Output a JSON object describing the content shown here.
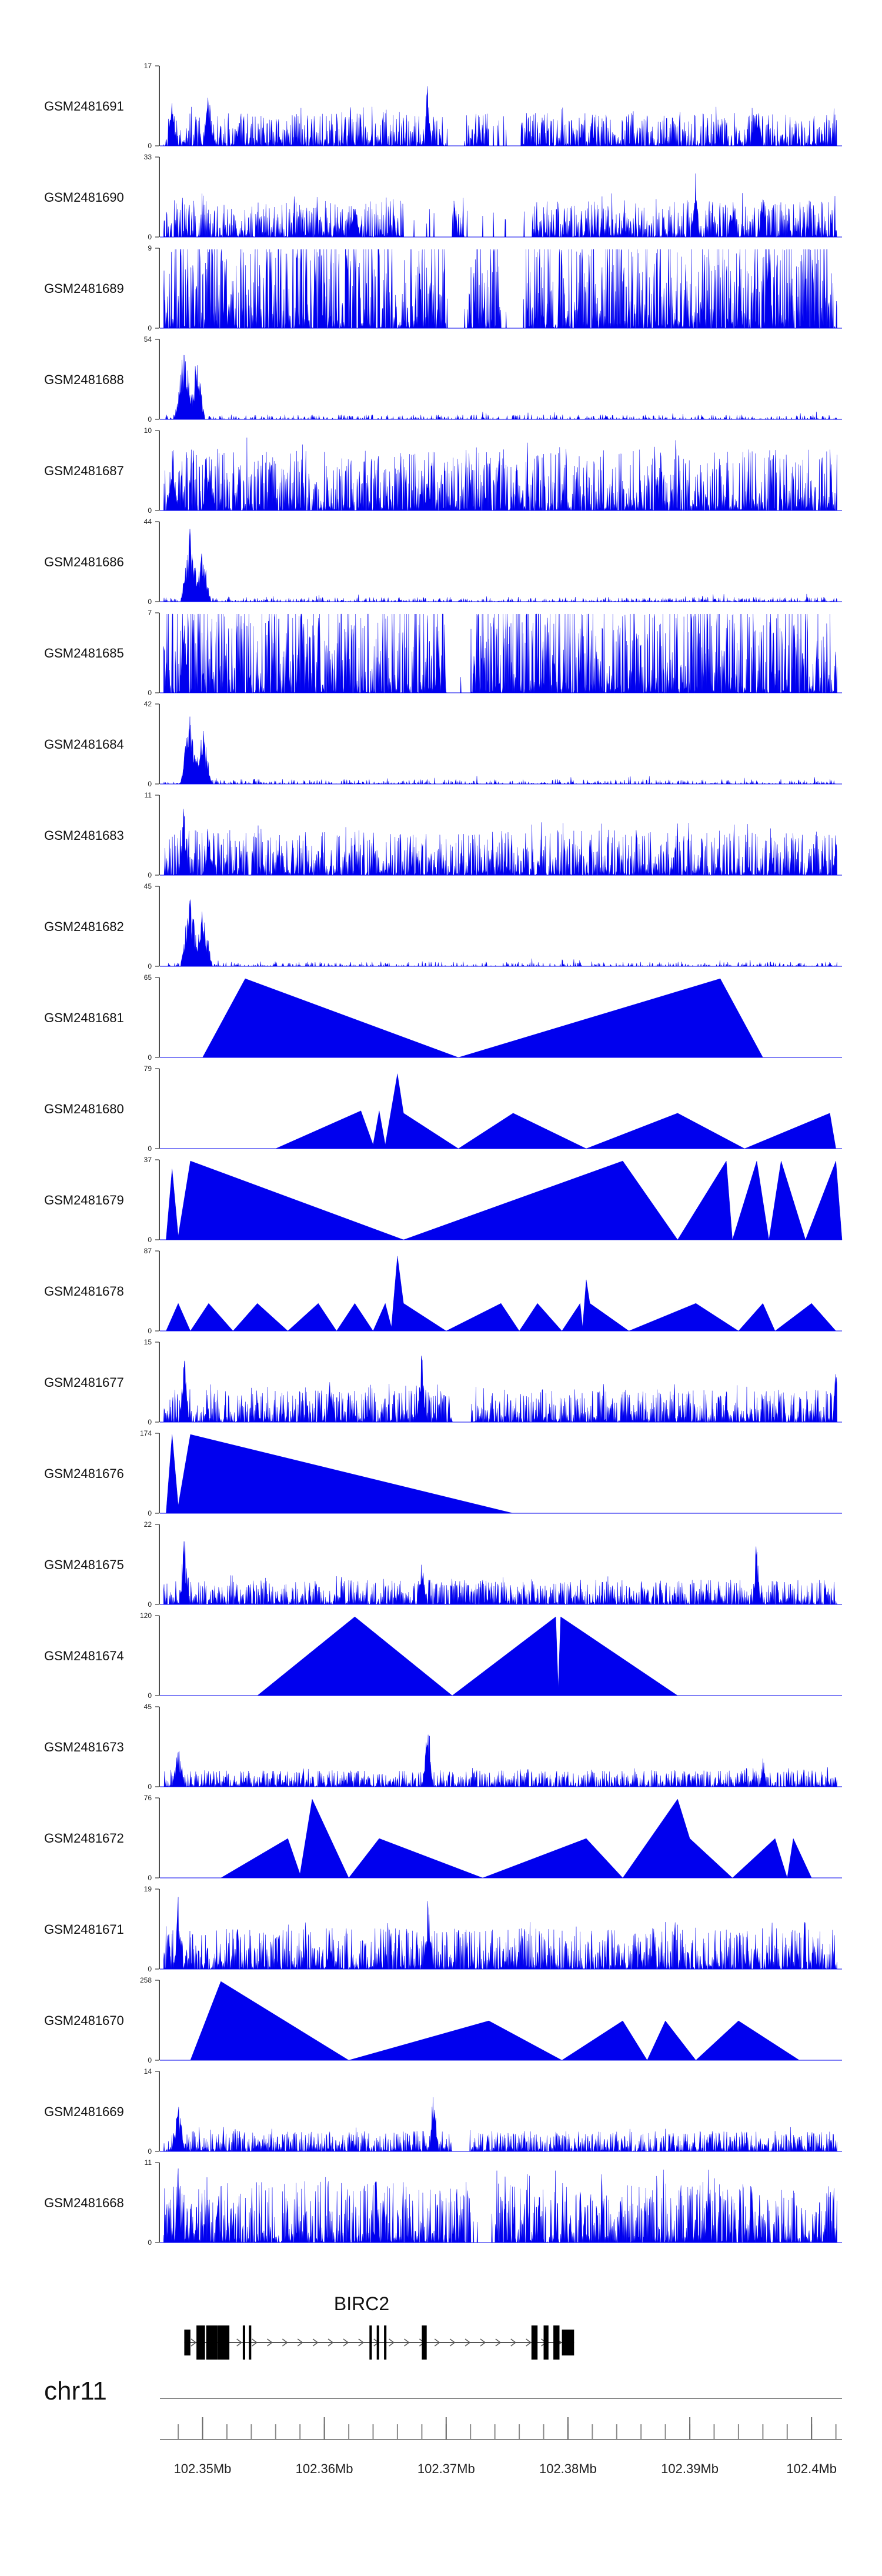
{
  "chart_data": {
    "type": "area",
    "title": "",
    "chromosome": "chr11",
    "gene": "BIRC2",
    "x_unit": "Mb",
    "xlim": [
      102.3465,
      102.4025
    ],
    "xticks": [
      102.35,
      102.36,
      102.37,
      102.38,
      102.39,
      102.4
    ],
    "xtick_labels": [
      "102.35Mb",
      "102.36Mb",
      "102.37Mb",
      "102.38Mb",
      "102.39Mb",
      "102.4Mb"
    ],
    "color": "#0000ee",
    "tracks": [
      {
        "name": "GSM2481691",
        "ymax": 17,
        "max_label": "17",
        "min_label": "0",
        "pattern": "dense",
        "seed": 11,
        "base": 0.16,
        "peaks": [
          [
            102.3475,
            0.95,
            0.0003
          ],
          [
            102.3505,
            0.7,
            0.0005
          ],
          [
            102.3685,
            1.0,
            0.0003
          ],
          [
            102.3955,
            0.55,
            0.0005
          ]
        ],
        "gaps": [
          [
            102.37,
            102.3715
          ],
          [
            102.3735,
            102.376
          ]
        ]
      },
      {
        "name": "GSM2481690",
        "ymax": 33,
        "max_label": "33",
        "min_label": "0",
        "pattern": "dense",
        "seed": 23,
        "base": 0.18,
        "peaks": [
          [
            102.3625,
            0.5,
            0.0004
          ],
          [
            102.3905,
            0.9,
            0.0003
          ],
          [
            102.3935,
            0.6,
            0.0004
          ],
          [
            102.396,
            0.85,
            0.0003
          ]
        ],
        "gaps": [
          [
            102.3665,
            102.3705
          ],
          [
            102.3715,
            102.377
          ]
        ]
      },
      {
        "name": "GSM2481689",
        "ymax": 9,
        "max_label": "9",
        "min_label": "0",
        "pattern": "dense",
        "seed": 37,
        "base": 0.5,
        "peaks": [
          [
            102.3965,
            1.0,
            0.0003
          ]
        ],
        "gaps": [
          [
            102.37,
            102.3718
          ],
          [
            102.3745,
            102.3765
          ]
        ]
      },
      {
        "name": "GSM2481688",
        "ymax": 54,
        "max_label": "54",
        "min_label": "0",
        "pattern": "sparse",
        "seed": 41,
        "base": 0.03,
        "peaks": [
          [
            102.3485,
            1.0,
            0.0008
          ],
          [
            102.3495,
            0.8,
            0.0007
          ]
        ],
        "gaps": []
      },
      {
        "name": "GSM2481687",
        "ymax": 10,
        "max_label": "10",
        "min_label": "0",
        "pattern": "dense",
        "seed": 53,
        "base": 0.3,
        "peaks": [
          [
            102.3475,
            0.9,
            0.0005
          ],
          [
            102.3505,
            0.55,
            0.0006
          ],
          [
            102.3685,
            0.45,
            0.0004
          ]
        ],
        "gaps": []
      },
      {
        "name": "GSM2481686",
        "ymax": 44,
        "max_label": "44",
        "min_label": "0",
        "pattern": "sparse",
        "seed": 61,
        "base": 0.03,
        "peaks": [
          [
            102.349,
            1.0,
            0.0008
          ],
          [
            102.35,
            0.7,
            0.0007
          ]
        ],
        "gaps": []
      },
      {
        "name": "GSM2481685",
        "ymax": 7,
        "max_label": "7",
        "min_label": "0",
        "pattern": "dense",
        "seed": 71,
        "base": 0.5,
        "peaks": [
          [
            102.3485,
            1.0,
            0.0004
          ]
        ],
        "gaps": [
          [
            102.37,
            102.372
          ]
        ]
      },
      {
        "name": "GSM2481684",
        "ymax": 42,
        "max_label": "42",
        "min_label": "0",
        "pattern": "sparse",
        "seed": 83,
        "base": 0.03,
        "peaks": [
          [
            102.349,
            1.0,
            0.0008
          ],
          [
            102.35,
            0.75,
            0.0008
          ]
        ],
        "gaps": []
      },
      {
        "name": "GSM2481683",
        "ymax": 11,
        "max_label": "11",
        "min_label": "0",
        "pattern": "dense",
        "seed": 97,
        "base": 0.22,
        "peaks": [
          [
            102.3485,
            1.0,
            0.0004
          ],
          [
            102.3505,
            0.5,
            0.0005
          ],
          [
            102.402,
            0.6,
            0.0003
          ]
        ],
        "gaps": []
      },
      {
        "name": "GSM2481682",
        "ymax": 45,
        "max_label": "45",
        "min_label": "0",
        "pattern": "sparse",
        "seed": 101,
        "base": 0.03,
        "peaks": [
          [
            102.349,
            1.0,
            0.0008
          ],
          [
            102.35,
            0.8,
            0.0008
          ]
        ],
        "gaps": []
      },
      {
        "name": "GSM2481681",
        "ymax": 65,
        "max_label": "65",
        "min_label": "0",
        "pattern": "poly",
        "points": [
          [
            102.35,
            0
          ],
          [
            102.3535,
            1.0
          ],
          [
            102.371,
            0
          ],
          [
            102.3925,
            1.0
          ],
          [
            102.396,
            0
          ]
        ]
      },
      {
        "name": "GSM2481680",
        "ymax": 79,
        "max_label": "79",
        "min_label": "0",
        "pattern": "poly",
        "points": [
          [
            102.356,
            0
          ],
          [
            102.363,
            0.48
          ],
          [
            102.364,
            0.05
          ],
          [
            102.3645,
            0.48
          ],
          [
            102.365,
            0.05
          ],
          [
            102.366,
            0.95
          ],
          [
            102.3665,
            0.45
          ],
          [
            102.371,
            0
          ],
          [
            102.3755,
            0.45
          ],
          [
            102.3815,
            0
          ],
          [
            102.389,
            0.45
          ],
          [
            102.3945,
            0
          ],
          [
            102.4015,
            0.45
          ],
          [
            102.402,
            0
          ]
        ]
      },
      {
        "name": "GSM2481679",
        "ymax": 37,
        "max_label": "37",
        "min_label": "0",
        "pattern": "poly",
        "points": [
          [
            102.347,
            0
          ],
          [
            102.3475,
            0.9
          ],
          [
            102.348,
            0.05
          ],
          [
            102.349,
            1.0
          ],
          [
            102.3665,
            0
          ],
          [
            102.3845,
            1.0
          ],
          [
            102.389,
            0
          ],
          [
            102.393,
            1.0
          ],
          [
            102.3935,
            0
          ],
          [
            102.3955,
            1.0
          ],
          [
            102.3965,
            0
          ],
          [
            102.3975,
            1.0
          ],
          [
            102.3995,
            0
          ],
          [
            102.402,
            1.0
          ],
          [
            102.4025,
            0
          ]
        ]
      },
      {
        "name": "GSM2481678",
        "ymax": 87,
        "max_label": "87",
        "min_label": "0",
        "pattern": "poly",
        "points": [
          [
            102.347,
            0
          ],
          [
            102.348,
            0.35
          ],
          [
            102.349,
            0
          ],
          [
            102.3505,
            0.35
          ],
          [
            102.3525,
            0
          ],
          [
            102.3545,
            0.35
          ],
          [
            102.357,
            0
          ],
          [
            102.3595,
            0.35
          ],
          [
            102.361,
            0
          ],
          [
            102.3625,
            0.35
          ],
          [
            102.364,
            0
          ],
          [
            102.365,
            0.35
          ],
          [
            102.3655,
            0.05
          ],
          [
            102.366,
            0.95
          ],
          [
            102.3665,
            0.35
          ],
          [
            102.37,
            0
          ],
          [
            102.3745,
            0.35
          ],
          [
            102.376,
            0
          ],
          [
            102.3775,
            0.35
          ],
          [
            102.3795,
            0
          ],
          [
            102.381,
            0.35
          ],
          [
            102.3812,
            0.05
          ],
          [
            102.3815,
            0.65
          ],
          [
            102.3818,
            0.35
          ],
          [
            102.385,
            0
          ],
          [
            102.3905,
            0.35
          ],
          [
            102.394,
            0
          ],
          [
            102.396,
            0.35
          ],
          [
            102.397,
            0
          ],
          [
            102.4,
            0.35
          ],
          [
            102.402,
            0
          ]
        ]
      },
      {
        "name": "GSM2481677",
        "ymax": 15,
        "max_label": "15",
        "min_label": "0",
        "pattern": "dense",
        "seed": 131,
        "base": 0.16,
        "peaks": [
          [
            102.3485,
            0.95,
            0.0004
          ],
          [
            102.3605,
            0.75,
            0.0003
          ],
          [
            102.368,
            0.95,
            0.0004
          ],
          [
            102.402,
            0.85,
            0.0003
          ]
        ],
        "gaps": [
          [
            102.3705,
            102.372
          ]
        ]
      },
      {
        "name": "GSM2481676",
        "ymax": 174,
        "max_label": "174",
        "min_label": "0",
        "pattern": "poly",
        "points": [
          [
            102.347,
            0
          ],
          [
            102.3475,
            1.0
          ],
          [
            102.348,
            0.1
          ],
          [
            102.349,
            1.0
          ],
          [
            102.3755,
            0
          ]
        ]
      },
      {
        "name": "GSM2481675",
        "ymax": 22,
        "max_label": "22",
        "min_label": "0",
        "pattern": "dense",
        "seed": 149,
        "base": 0.12,
        "peaks": [
          [
            102.3485,
            0.95,
            0.0004
          ],
          [
            102.368,
            0.6,
            0.0004
          ],
          [
            102.3955,
            0.95,
            0.0003
          ]
        ],
        "gaps": []
      },
      {
        "name": "GSM2481674",
        "ymax": 120,
        "max_label": "120",
        "min_label": "0",
        "pattern": "poly",
        "points": [
          [
            102.3545,
            0
          ],
          [
            102.3625,
            1.0
          ],
          [
            102.3705,
            0
          ],
          [
            102.379,
            1.0
          ],
          [
            102.3792,
            0.1
          ],
          [
            102.3794,
            1.0
          ],
          [
            102.389,
            0
          ]
        ]
      },
      {
        "name": "GSM2481673",
        "ymax": 45,
        "max_label": "45",
        "min_label": "0",
        "pattern": "dense",
        "seed": 163,
        "base": 0.08,
        "peaks": [
          [
            102.348,
            0.55,
            0.0005
          ],
          [
            102.3685,
            1.0,
            0.0004
          ],
          [
            102.396,
            0.45,
            0.0003
          ]
        ],
        "gaps": []
      },
      {
        "name": "GSM2481672",
        "ymax": 76,
        "max_label": "76",
        "min_label": "0",
        "pattern": "poly",
        "points": [
          [
            102.3515,
            0
          ],
          [
            102.357,
            0.5
          ],
          [
            102.358,
            0.05
          ],
          [
            102.359,
            1.0
          ],
          [
            102.3605,
            0.5
          ],
          [
            102.362,
            0
          ],
          [
            102.3645,
            0.5
          ],
          [
            102.373,
            0
          ],
          [
            102.3815,
            0.5
          ],
          [
            102.3845,
            0
          ],
          [
            102.389,
            1.0
          ],
          [
            102.39,
            0.5
          ],
          [
            102.3935,
            0
          ],
          [
            102.397,
            0.5
          ],
          [
            102.398,
            0
          ],
          [
            102.3985,
            0.5
          ],
          [
            102.4,
            0
          ]
        ]
      },
      {
        "name": "GSM2481671",
        "ymax": 19,
        "max_label": "19",
        "min_label": "0",
        "pattern": "dense",
        "seed": 179,
        "base": 0.2,
        "peaks": [
          [
            102.348,
            0.95,
            0.0004
          ],
          [
            102.3685,
            0.95,
            0.0004
          ],
          [
            102.3605,
            0.4,
            0.0004
          ]
        ],
        "gaps": []
      },
      {
        "name": "GSM2481670",
        "ymax": 258,
        "max_label": "258",
        "min_label": "0",
        "pattern": "poly",
        "points": [
          [
            102.349,
            0
          ],
          [
            102.3515,
            1.0
          ],
          [
            102.362,
            0
          ],
          [
            102.3735,
            0.5
          ],
          [
            102.3795,
            0
          ],
          [
            102.3845,
            0.5
          ],
          [
            102.3865,
            0
          ],
          [
            102.388,
            0.5
          ],
          [
            102.3905,
            0
          ],
          [
            102.394,
            0.5
          ],
          [
            102.399,
            0
          ]
        ]
      },
      {
        "name": "GSM2481669",
        "ymax": 14,
        "max_label": "14",
        "min_label": "0",
        "pattern": "dense",
        "seed": 197,
        "base": 0.1,
        "peaks": [
          [
            102.348,
            0.75,
            0.0005
          ],
          [
            102.369,
            1.0,
            0.0004
          ]
        ],
        "gaps": [
          [
            102.3705,
            102.372
          ]
        ]
      },
      {
        "name": "GSM2481668",
        "ymax": 11,
        "max_label": "11",
        "min_label": "0",
        "pattern": "dense",
        "seed": 211,
        "base": 0.3,
        "peaks": [
          [
            102.348,
            1.0,
            0.0003
          ],
          [
            102.3915,
            0.95,
            0.0003
          ]
        ],
        "gaps": [
          [
            102.372,
            102.374
          ]
        ]
      }
    ],
    "gene_model": {
      "strand": "+",
      "start": 102.3485,
      "end": 102.3805,
      "exons": [
        [
          102.3485,
          102.349
        ],
        [
          102.3495,
          102.3502
        ],
        [
          102.3503,
          102.3512
        ],
        [
          102.3512,
          102.3522
        ],
        [
          102.3533,
          102.3535
        ],
        [
          102.3538,
          102.354
        ],
        [
          102.3637,
          102.3639
        ],
        [
          102.3643,
          102.3645
        ],
        [
          102.3649,
          102.3651
        ],
        [
          102.368,
          102.3684
        ],
        [
          102.377,
          102.3775
        ],
        [
          102.378,
          102.3784
        ],
        [
          102.3788,
          102.3793
        ],
        [
          102.3795,
          102.3805
        ]
      ]
    }
  }
}
